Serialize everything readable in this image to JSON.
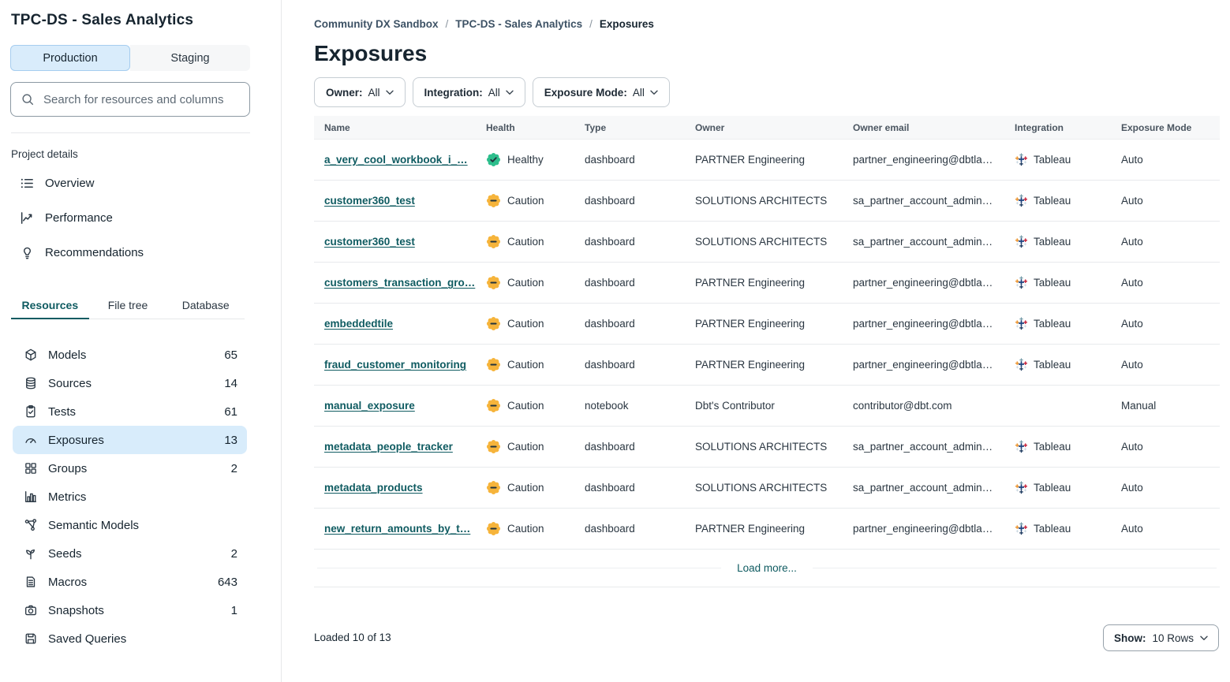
{
  "colors": {
    "accent_teal": "#0F5B61",
    "healthy_green": "#2DBE8C",
    "caution_amber": "#F6B43B",
    "selection_blue": "#D8ECFB",
    "glyph_dark": "#21333C"
  },
  "sidebar": {
    "title": "TPC-DS - Sales Analytics",
    "environment_tabs": [
      {
        "label": "Production",
        "active": true
      },
      {
        "label": "Staging",
        "active": false
      }
    ],
    "search_placeholder": "Search for resources and columns",
    "project_details_label": "Project details",
    "nav_items": [
      {
        "label": "Overview",
        "icon": "overview-list-icon"
      },
      {
        "label": "Performance",
        "icon": "performance-chart-icon"
      },
      {
        "label": "Recommendations",
        "icon": "recommendations-bulb-icon"
      }
    ],
    "view_tabs": [
      {
        "label": "Resources",
        "active": true
      },
      {
        "label": "File tree",
        "active": false
      },
      {
        "label": "Database",
        "active": false
      }
    ],
    "resources": [
      {
        "label": "Models",
        "count": "65",
        "icon": "models-cube-icon",
        "selected": false
      },
      {
        "label": "Sources",
        "count": "14",
        "icon": "sources-database-icon",
        "selected": false
      },
      {
        "label": "Tests",
        "count": "61",
        "icon": "tests-clipboard-icon",
        "selected": false
      },
      {
        "label": "Exposures",
        "count": "13",
        "icon": "exposures-gauge-icon",
        "selected": true
      },
      {
        "label": "Groups",
        "count": "2",
        "icon": "groups-grid-icon",
        "selected": false
      },
      {
        "label": "Metrics",
        "count": "",
        "icon": "metrics-bars-icon",
        "selected": false
      },
      {
        "label": "Semantic Models",
        "count": "",
        "icon": "semantic-models-graph-icon",
        "selected": false
      },
      {
        "label": "Seeds",
        "count": "2",
        "icon": "seeds-sprout-icon",
        "selected": false
      },
      {
        "label": "Macros",
        "count": "643",
        "icon": "macros-file-icon",
        "selected": false
      },
      {
        "label": "Snapshots",
        "count": "1",
        "icon": "snapshots-camera-icon",
        "selected": false
      },
      {
        "label": "Saved Queries",
        "count": "",
        "icon": "saved-queries-disk-icon",
        "selected": false
      }
    ]
  },
  "breadcrumb": {
    "separator": "/",
    "items": [
      {
        "label": "Community DX Sandbox",
        "current": false
      },
      {
        "label": "TPC-DS - Sales Analytics",
        "current": false
      },
      {
        "label": "Exposures",
        "current": true
      }
    ]
  },
  "page": {
    "title": "Exposures"
  },
  "filters": [
    {
      "label": "Owner:",
      "value": "All"
    },
    {
      "label": "Integration:",
      "value": "All"
    },
    {
      "label": "Exposure Mode:",
      "value": "All"
    }
  ],
  "table": {
    "columns": [
      "Name",
      "Health",
      "Type",
      "Owner",
      "Owner email",
      "Integration",
      "Exposure Mode"
    ],
    "rows": [
      {
        "name": "a_very_cool_workbook_i_…",
        "health": "Healthy",
        "type": "dashboard",
        "owner": "PARTNER Engineering",
        "owner_email": "partner_engineering@dbtla…",
        "integration": "Tableau",
        "exposure_mode": "Auto"
      },
      {
        "name": "customer360_test",
        "health": "Caution",
        "type": "dashboard",
        "owner": "SOLUTIONS ARCHITECTS",
        "owner_email": "sa_partner_account_admin…",
        "integration": "Tableau",
        "exposure_mode": "Auto"
      },
      {
        "name": "customer360_test",
        "health": "Caution",
        "type": "dashboard",
        "owner": "SOLUTIONS ARCHITECTS",
        "owner_email": "sa_partner_account_admin…",
        "integration": "Tableau",
        "exposure_mode": "Auto"
      },
      {
        "name": "customers_transaction_gro…",
        "health": "Caution",
        "type": "dashboard",
        "owner": "PARTNER Engineering",
        "owner_email": "partner_engineering@dbtla…",
        "integration": "Tableau",
        "exposure_mode": "Auto"
      },
      {
        "name": "embeddedtile",
        "health": "Caution",
        "type": "dashboard",
        "owner": "PARTNER Engineering",
        "owner_email": "partner_engineering@dbtla…",
        "integration": "Tableau",
        "exposure_mode": "Auto"
      },
      {
        "name": "fraud_customer_monitoring",
        "health": "Caution",
        "type": "dashboard",
        "owner": "PARTNER Engineering",
        "owner_email": "partner_engineering@dbtla…",
        "integration": "Tableau",
        "exposure_mode": "Auto"
      },
      {
        "name": "manual_exposure",
        "health": "Caution",
        "type": "notebook",
        "owner": "Dbt's Contributor",
        "owner_email": "contributor@dbt.com",
        "integration": "",
        "exposure_mode": "Manual"
      },
      {
        "name": "metadata_people_tracker",
        "health": "Caution",
        "type": "dashboard",
        "owner": "SOLUTIONS ARCHITECTS",
        "owner_email": "sa_partner_account_admin…",
        "integration": "Tableau",
        "exposure_mode": "Auto"
      },
      {
        "name": "metadata_products",
        "health": "Caution",
        "type": "dashboard",
        "owner": "SOLUTIONS ARCHITECTS",
        "owner_email": "sa_partner_account_admin…",
        "integration": "Tableau",
        "exposure_mode": "Auto"
      },
      {
        "name": "new_return_amounts_by_t…",
        "health": "Caution",
        "type": "dashboard",
        "owner": "PARTNER Engineering",
        "owner_email": "partner_engineering@dbtla…",
        "integration": "Tableau",
        "exposure_mode": "Auto"
      }
    ],
    "load_more_label": "Load more..."
  },
  "footer": {
    "loaded_text": "Loaded 10 of 13",
    "show_label": "Show:",
    "show_value": "10 Rows"
  }
}
